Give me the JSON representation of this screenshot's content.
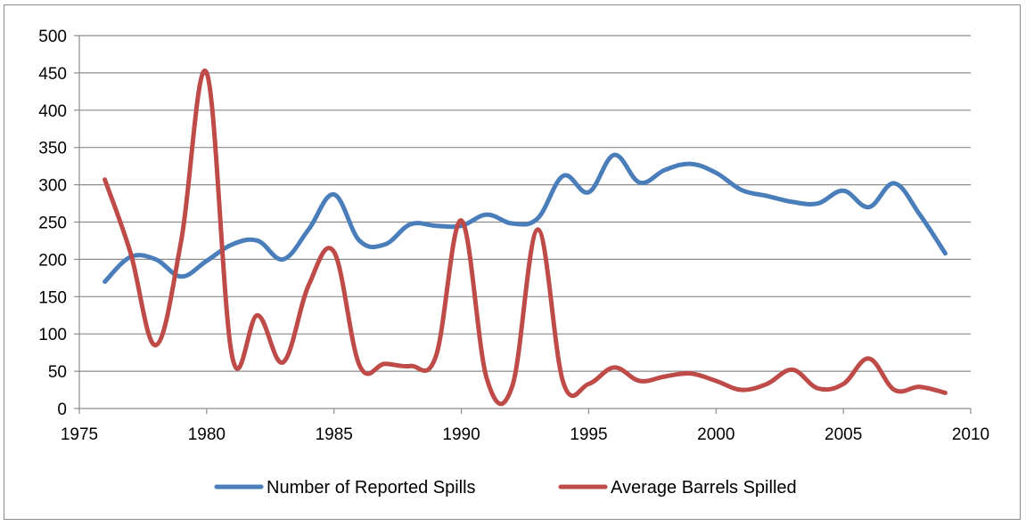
{
  "chart_data": {
    "type": "line",
    "title": "",
    "xlabel": "",
    "ylabel": "",
    "xlim": [
      1975,
      2010
    ],
    "ylim": [
      0,
      500
    ],
    "x_ticks": [
      1975,
      1980,
      1985,
      1990,
      1995,
      2000,
      2005,
      2010
    ],
    "y_ticks": [
      0,
      50,
      100,
      150,
      200,
      250,
      300,
      350,
      400,
      450,
      500
    ],
    "grid": true,
    "legend_position": "bottom",
    "x": [
      1976,
      1977,
      1978,
      1979,
      1980,
      1981,
      1982,
      1983,
      1984,
      1985,
      1986,
      1987,
      1988,
      1989,
      1990,
      1991,
      1992,
      1993,
      1994,
      1995,
      1996,
      1997,
      1998,
      1999,
      2000,
      2001,
      2002,
      2003,
      2004,
      2005,
      2006,
      2007,
      2008,
      2009
    ],
    "series": [
      {
        "name": "Number of Reported Spills",
        "color": "#4a7ebb",
        "values": [
          170,
          203,
          200,
          177,
          198,
          220,
          225,
          200,
          240,
          287,
          225,
          220,
          247,
          245,
          245,
          260,
          248,
          255,
          312,
          290,
          340,
          303,
          320,
          328,
          316,
          293,
          285,
          277,
          275,
          292,
          270,
          302,
          260,
          208
        ]
      },
      {
        "name": "Average Barrels Spilled",
        "color": "#be4b48",
        "values": [
          307,
          210,
          85,
          225,
          450,
          70,
          125,
          62,
          165,
          210,
          58,
          60,
          57,
          70,
          252,
          40,
          30,
          240,
          35,
          33,
          55,
          37,
          43,
          47,
          37,
          25,
          33,
          52,
          27,
          33,
          67,
          25,
          29,
          21
        ]
      }
    ]
  }
}
